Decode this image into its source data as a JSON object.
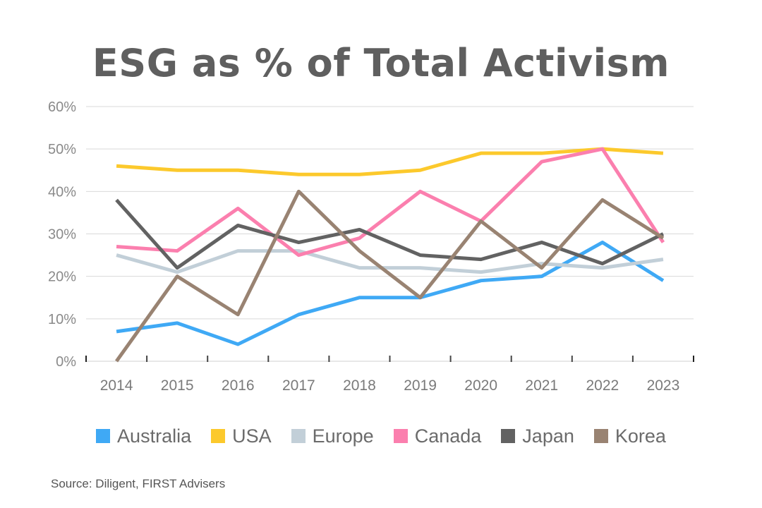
{
  "chart_data": {
    "type": "line",
    "title": "ESG as % of Total Activism",
    "xlabel": "",
    "ylabel": "",
    "categories": [
      "2014",
      "2015",
      "2016",
      "2017",
      "2018",
      "2019",
      "2020",
      "2021",
      "2022",
      "2023"
    ],
    "ylim": [
      0,
      60
    ],
    "yticks": [
      "0%",
      "10%",
      "20%",
      "30%",
      "40%",
      "50%",
      "60%"
    ],
    "grid": true,
    "legend_position": "bottom",
    "series": [
      {
        "name": "Australia",
        "color": "#3fa9f5",
        "values": [
          7,
          9,
          4,
          11,
          15,
          15,
          19,
          20,
          28,
          19
        ]
      },
      {
        "name": "USA",
        "color": "#fcc92c",
        "values": [
          46,
          45,
          45,
          44,
          44,
          45,
          49,
          49,
          50,
          49
        ]
      },
      {
        "name": "Europe",
        "color": "#c2cfd8",
        "values": [
          25,
          21,
          26,
          26,
          22,
          22,
          21,
          23,
          22,
          24
        ]
      },
      {
        "name": "Canada",
        "color": "#fb7fae",
        "values": [
          27,
          26,
          36,
          25,
          29,
          40,
          33,
          47,
          50,
          28
        ]
      },
      {
        "name": "Japan",
        "color": "#626262",
        "values": [
          38,
          22,
          32,
          28,
          31,
          25,
          24,
          28,
          23,
          30
        ]
      },
      {
        "name": "Korea",
        "color": "#998372",
        "values": [
          0,
          20,
          11,
          40,
          26,
          15,
          33,
          22,
          38,
          29
        ]
      }
    ]
  },
  "source": "Source: Diligent, FIRST Advisers"
}
